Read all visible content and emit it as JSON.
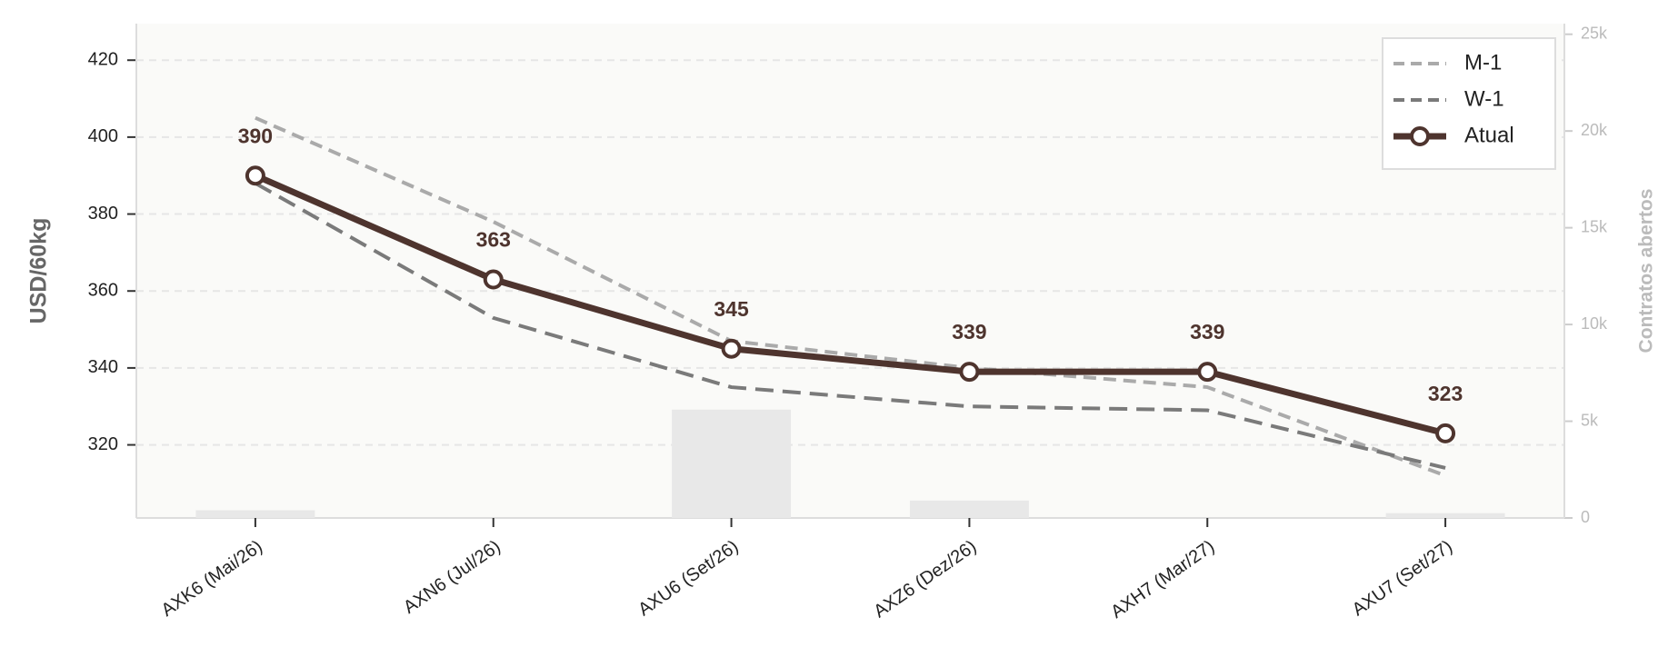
{
  "chart_data": {
    "type": "line",
    "y_label": "USD/60kg",
    "y2_label": "Contratos abertos",
    "categories": [
      "AXK6 (Mai/26)",
      "AXN6 (Jul/26)",
      "AXU6 (Set/26)",
      "AXZ6 (Dez/26)",
      "AXH7 (Mar/27)",
      "AXU7 (Set/27)"
    ],
    "series": [
      {
        "name": "M-1",
        "color": "#aaaaaa",
        "style": "dashed",
        "values": [
          405,
          378,
          347,
          340,
          335,
          312
        ]
      },
      {
        "name": "W-1",
        "color": "#7a7a7a",
        "style": "dashed",
        "values": [
          388,
          353,
          335,
          330,
          329,
          314
        ]
      },
      {
        "name": "Atual",
        "color": "#4e342e",
        "style": "solid",
        "values": [
          390,
          363,
          345,
          339,
          339,
          323
        ]
      },
      {
        "name": "Contratos abertos",
        "type": "bar",
        "axis": "y2",
        "color": "#e8e8e8",
        "values": [
          400,
          0,
          5600,
          900,
          0,
          250
        ]
      }
    ],
    "ylim": [
      301,
      429.5
    ],
    "yticks": [
      320,
      340,
      360,
      380,
      400,
      420
    ],
    "y2lim": [
      0,
      25550
    ],
    "y2ticks": [
      0,
      {
        "value": 5000,
        "label": "5k"
      },
      {
        "value": 10000,
        "label": "10k"
      },
      {
        "value": 15000,
        "label": "15k"
      },
      {
        "value": 20000,
        "label": "20k"
      },
      {
        "value": 25000,
        "label": "25k"
      }
    ],
    "grid": true,
    "legend": "upper right"
  }
}
